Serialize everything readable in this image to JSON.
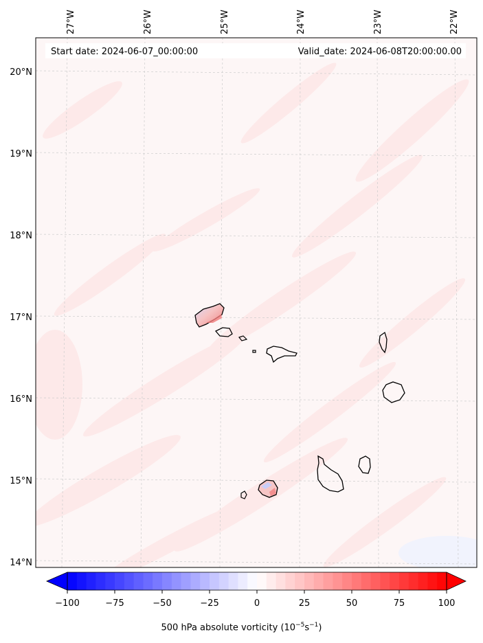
{
  "header": {
    "start_date": "Start date: 2024-06-07_00:00:00",
    "valid_date": "Valid_date: 2024-06-08T20:00:00.00"
  },
  "map": {
    "lon_labels": [
      "27°W",
      "26°W",
      "25°W",
      "24°W",
      "23°W",
      "22°W"
    ],
    "lat_labels": [
      "20°N",
      "19°N",
      "18°N",
      "17°N",
      "16°N",
      "15°N",
      "14°N"
    ],
    "islands": [
      "Santo Antão",
      "São Vicente",
      "Santa Luzia",
      "Branco",
      "São Nicolau",
      "Sal",
      "Boa Vista",
      "Maio",
      "Santiago",
      "Fogo",
      "Brava"
    ]
  },
  "colorbar": {
    "ticks": [
      "−100",
      "−75",
      "−50",
      "−25",
      "0",
      "25",
      "50",
      "75",
      "100"
    ],
    "min": -100,
    "max": 100,
    "extend": "both",
    "cmap": "bwr",
    "label_prefix": "500 hPa absolute vorticity (10",
    "label_exp1": "−5",
    "label_mid": "s",
    "label_exp2": "−1",
    "label_suffix": ")"
  },
  "colors": {
    "background_field": "#fdf5f5",
    "light_positive": "#fde9e9",
    "strong_positive": "#f59a9a",
    "negative": "#c7cdf9",
    "coastline": "#000000",
    "grid": "#cfcfcf"
  }
}
